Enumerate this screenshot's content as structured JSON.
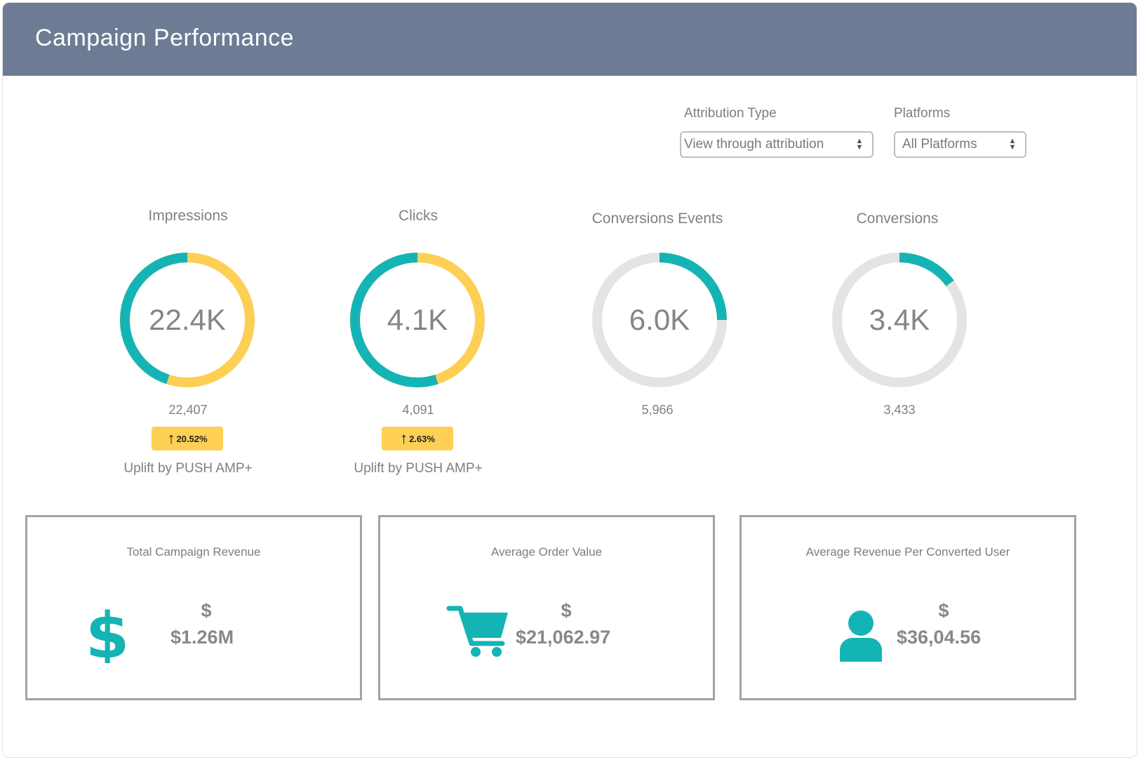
{
  "header": {
    "title": "Campaign Performance"
  },
  "filters": {
    "attribution": {
      "label": "Attribution Type",
      "value": "View through attribution"
    },
    "platforms": {
      "label": "Platforms",
      "value": "All Platforms"
    }
  },
  "colors": {
    "teal": "#14b4b4",
    "yellow": "#fdcf54",
    "grey_track": "#e4e4e4",
    "header": "#6d7c94"
  },
  "metrics": [
    {
      "title": "Impressions",
      "display": "22.4K",
      "count": "22,407",
      "uplift_pct": "20.52%",
      "uplift_label": "Uplift by PUSH AMP+",
      "teal_fraction": 0.45,
      "remainder": "yellow"
    },
    {
      "title": "Clicks",
      "display": "4.1K",
      "count": "4,091",
      "uplift_pct": "2.63%",
      "uplift_label": "Uplift by PUSH AMP+",
      "teal_fraction": 0.55,
      "remainder": "yellow"
    },
    {
      "title": "Conversions Events",
      "display": "6.0K",
      "count": "5,966",
      "teal_fraction": 0.25,
      "remainder": "grey"
    },
    {
      "title": "Conversions",
      "display": "3.4K",
      "count": "3,433",
      "teal_fraction": 0.15,
      "remainder": "grey"
    }
  ],
  "cards": [
    {
      "title": "Total Campaign Revenue",
      "currency": "$",
      "value": "$1.26M",
      "icon": "dollar-icon"
    },
    {
      "title": "Average Order Value",
      "currency": "$",
      "value": "$21,062.97",
      "icon": "cart-icon"
    },
    {
      "title": "Average Revenue Per Converted User",
      "currency": "$",
      "value": "$36,04.56",
      "icon": "user-icon"
    }
  ]
}
